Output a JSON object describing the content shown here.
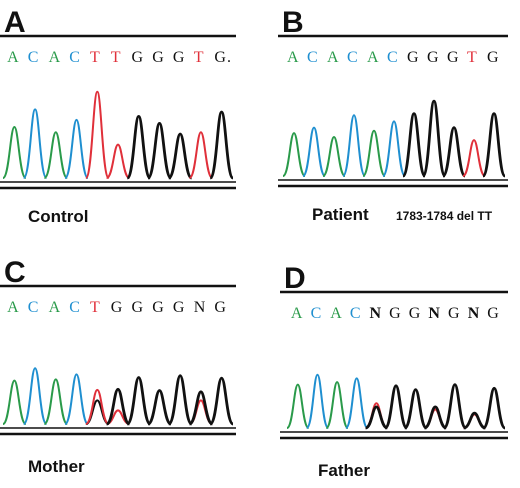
{
  "figure": {
    "colors": {
      "A": "#2a9a4a",
      "C": "#1f8fd0",
      "G": "#111111",
      "T": "#e0303a",
      "N": "#111111",
      "baseline": "#111111"
    },
    "panels": [
      {
        "id": "A",
        "letter": "A",
        "caption": "Control",
        "note": "",
        "sequence": [
          {
            "base": "A",
            "text": "A"
          },
          {
            "base": "C",
            "text": "C"
          },
          {
            "base": "A",
            "text": "A"
          },
          {
            "base": "C",
            "text": "C"
          },
          {
            "base": "T",
            "text": "T"
          },
          {
            "base": "T",
            "text": "T"
          },
          {
            "base": "G",
            "text": "G"
          },
          {
            "base": "G",
            "text": "G"
          },
          {
            "base": "G",
            "text": "G"
          },
          {
            "base": "T",
            "text": "T"
          },
          {
            "base": "G",
            "text": "G."
          }
        ],
        "peaks": [
          {
            "base": "A",
            "height": 0.58
          },
          {
            "base": "C",
            "height": 0.78
          },
          {
            "base": "A",
            "height": 0.52
          },
          {
            "base": "C",
            "height": 0.66
          },
          {
            "base": "T",
            "height": 0.98
          },
          {
            "base": "T",
            "height": 0.38
          },
          {
            "base": "G",
            "height": 0.7
          },
          {
            "base": "G",
            "height": 0.62
          },
          {
            "base": "G",
            "height": 0.5
          },
          {
            "base": "T",
            "height": 0.52
          },
          {
            "base": "G",
            "height": 0.75
          }
        ]
      },
      {
        "id": "B",
        "letter": "B",
        "caption": "Patient",
        "note": "1783-1784 del TT",
        "sequence": [
          {
            "base": "A",
            "text": "A"
          },
          {
            "base": "C",
            "text": "C"
          },
          {
            "base": "A",
            "text": "A"
          },
          {
            "base": "C",
            "text": "C"
          },
          {
            "base": "A",
            "text": "A"
          },
          {
            "base": "C",
            "text": "C"
          },
          {
            "base": "G",
            "text": "G"
          },
          {
            "base": "G",
            "text": "G"
          },
          {
            "base": "G",
            "text": "G"
          },
          {
            "base": "T",
            "text": "T"
          },
          {
            "base": "G",
            "text": "G"
          }
        ],
        "peaks": [
          {
            "base": "A",
            "height": 0.55
          },
          {
            "base": "C",
            "height": 0.62
          },
          {
            "base": "A",
            "height": 0.5
          },
          {
            "base": "C",
            "height": 0.78
          },
          {
            "base": "A",
            "height": 0.58
          },
          {
            "base": "C",
            "height": 0.7
          },
          {
            "base": "G",
            "height": 0.8
          },
          {
            "base": "G",
            "height": 0.96
          },
          {
            "base": "G",
            "height": 0.62
          },
          {
            "base": "T",
            "height": 0.46
          },
          {
            "base": "G",
            "height": 0.8
          }
        ]
      },
      {
        "id": "C",
        "letter": "C",
        "caption": "Mother",
        "note": "",
        "sequence": [
          {
            "base": "A",
            "text": "A"
          },
          {
            "base": "C",
            "text": "C"
          },
          {
            "base": "A",
            "text": "A"
          },
          {
            "base": "C",
            "text": "C"
          },
          {
            "base": "T",
            "text": "T"
          },
          {
            "base": "G",
            "text": "G"
          },
          {
            "base": "G",
            "text": "G"
          },
          {
            "base": "G",
            "text": "G"
          },
          {
            "base": "G",
            "text": "G"
          },
          {
            "base": "N",
            "text": "N"
          },
          {
            "base": "G",
            "text": "G"
          }
        ],
        "peaks": [
          {
            "base": "A",
            "height": 0.7
          },
          {
            "base": "C",
            "height": 0.9
          },
          {
            "base": "A",
            "height": 0.72
          },
          {
            "base": "C",
            "height": 0.8
          },
          {
            "base": "T",
            "height": 0.55,
            "overlay": "G",
            "overlay_height": 0.38
          },
          {
            "base": "G",
            "height": 0.56,
            "overlay": "T",
            "overlay_height": 0.22
          },
          {
            "base": "G",
            "height": 0.75
          },
          {
            "base": "G",
            "height": 0.54
          },
          {
            "base": "G",
            "height": 0.78
          },
          {
            "base": "G",
            "height": 0.52,
            "overlay": "T",
            "overlay_height": 0.38
          },
          {
            "base": "G",
            "height": 0.74
          }
        ]
      },
      {
        "id": "D",
        "letter": "D",
        "caption": "Father",
        "note": "",
        "sequence": [
          {
            "base": "A",
            "text": "A"
          },
          {
            "base": "C",
            "text": "C"
          },
          {
            "base": "A",
            "text": "A"
          },
          {
            "base": "C",
            "text": "C"
          },
          {
            "base": "N",
            "text": "N",
            "bold": true
          },
          {
            "base": "G",
            "text": "G"
          },
          {
            "base": "G",
            "text": "G"
          },
          {
            "base": "N",
            "text": "N",
            "bold": true
          },
          {
            "base": "G",
            "text": "G"
          },
          {
            "base": "N",
            "text": "N",
            "bold": true
          },
          {
            "base": "G",
            "text": "G"
          }
        ],
        "peaks": [
          {
            "base": "A",
            "height": 0.7
          },
          {
            "base": "C",
            "height": 0.86
          },
          {
            "base": "A",
            "height": 0.74
          },
          {
            "base": "C",
            "height": 0.8
          },
          {
            "base": "G",
            "height": 0.34,
            "overlay": "T",
            "overlay_height": 0.4
          },
          {
            "base": "G",
            "height": 0.68
          },
          {
            "base": "G",
            "height": 0.62
          },
          {
            "base": "G",
            "height": 0.34,
            "overlay": "T",
            "overlay_height": 0.3
          },
          {
            "base": "G",
            "height": 0.7
          },
          {
            "base": "G",
            "height": 0.24,
            "overlay": "T",
            "overlay_height": 0.22
          },
          {
            "base": "G",
            "height": 0.64
          }
        ]
      }
    ]
  }
}
